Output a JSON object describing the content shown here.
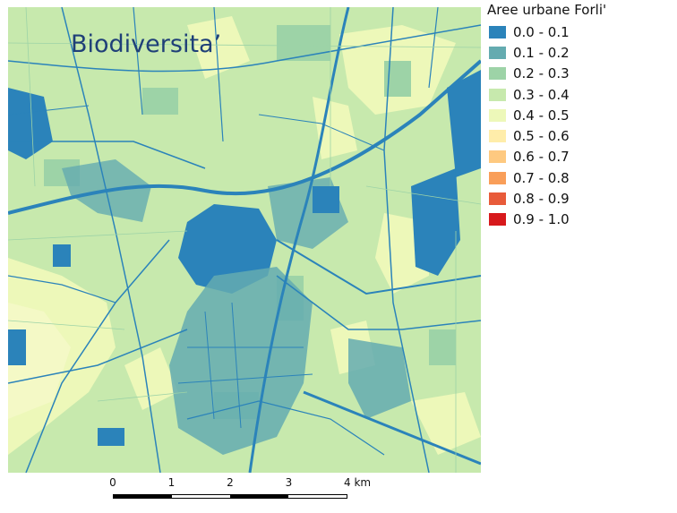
{
  "map": {
    "title": "Biodiversita’"
  },
  "legend": {
    "title": "Aree urbane Forli'",
    "items": [
      {
        "label": "0.0 - 0.1",
        "color": "#2b83ba"
      },
      {
        "label": "0.1 - 0.2",
        "color": "#64abb0"
      },
      {
        "label": "0.2 - 0.3",
        "color": "#9dd3a7"
      },
      {
        "label": "0.3 - 0.4",
        "color": "#c7e9ad"
      },
      {
        "label": "0.4 - 0.5",
        "color": "#edf8b9"
      },
      {
        "label": "0.5 - 0.6",
        "color": "#ffedaa"
      },
      {
        "label": "0.6 - 0.7",
        "color": "#fec980"
      },
      {
        "label": "0.7 - 0.8",
        "color": "#f99e59"
      },
      {
        "label": "0.8 - 0.9",
        "color": "#e85b3a"
      },
      {
        "label": "0.9 - 1.0",
        "color": "#d7191c"
      }
    ]
  },
  "scale_bar": {
    "labels": [
      "0",
      "1",
      "2",
      "3",
      "4 km"
    ]
  }
}
